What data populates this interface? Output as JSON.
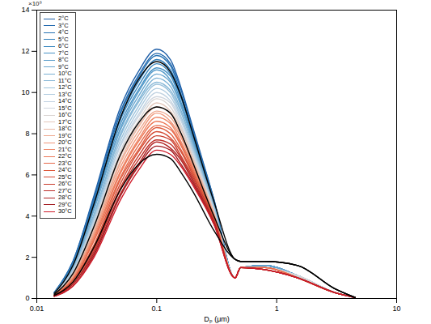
{
  "chart_data": {
    "type": "line",
    "x_label": "Dₚ (μm)",
    "annotations": [
      "×10⁹"
    ],
    "log": "x",
    "legend": "top-left",
    "x": [
      0.014,
      0.02,
      0.03,
      0.05,
      0.07,
      0.1,
      0.13,
      0.16,
      0.2,
      0.3,
      0.45,
      0.5,
      0.8,
      1.5,
      3,
      4.5
    ],
    "xlim": [
      0.01,
      10
    ],
    "xticks": [
      0.01,
      0.1,
      1,
      10
    ],
    "ylim": [
      0,
      14
    ],
    "yticks": [
      0,
      2,
      4,
      6,
      8,
      10,
      12,
      14
    ],
    "series": [
      {
        "name": "2°C",
        "color": "#1f5fa8",
        "values": [
          0.3,
          1.8,
          5.0,
          9.3,
          11.0,
          12.1,
          11.6,
          10.2,
          8.3,
          4.8,
          1.0,
          1.5,
          1.6,
          1.1,
          0.3,
          0.05
        ]
      },
      {
        "name": "3°C",
        "color": "#2369ae",
        "values": [
          0.29,
          1.8,
          4.9,
          9.1,
          10.8,
          11.9,
          11.4,
          10.1,
          8.2,
          4.8,
          1.0,
          1.5,
          1.6,
          1.1,
          0.3,
          0.05
        ]
      },
      {
        "name": "4°C",
        "color": "#2873b4",
        "values": [
          0.29,
          1.7,
          4.8,
          9.0,
          10.7,
          11.8,
          11.3,
          9.9,
          8.1,
          4.7,
          1.0,
          1.5,
          1.6,
          1.1,
          0.3,
          0.05
        ]
      },
      {
        "name": "5°C",
        "color": "#2f7dba",
        "values": [
          0.28,
          1.7,
          4.7,
          8.8,
          10.5,
          11.6,
          11.1,
          9.8,
          8.0,
          4.7,
          1.0,
          1.5,
          1.6,
          1.1,
          0.3,
          0.05
        ]
      },
      {
        "name": "6°C",
        "color": "#3a88c0",
        "values": [
          0.27,
          1.6,
          4.6,
          8.7,
          10.3,
          11.4,
          10.9,
          9.7,
          7.9,
          4.6,
          1.0,
          1.5,
          1.6,
          1.1,
          0.3,
          0.05
        ]
      },
      {
        "name": "7°C",
        "color": "#4892c5",
        "values": [
          0.26,
          1.6,
          4.5,
          8.5,
          10.1,
          11.2,
          10.8,
          9.5,
          7.8,
          4.6,
          1.0,
          1.5,
          1.6,
          1.1,
          0.3,
          0.05
        ]
      },
      {
        "name": "8°C",
        "color": "#589cca",
        "values": [
          0.26,
          1.5,
          4.4,
          8.3,
          10.0,
          11.1,
          10.6,
          9.4,
          7.7,
          4.5,
          1.0,
          1.5,
          1.6,
          1.1,
          0.3,
          0.05
        ]
      },
      {
        "name": "9°C",
        "color": "#68a6cf",
        "values": [
          0.25,
          1.5,
          4.3,
          8.2,
          9.8,
          10.9,
          10.5,
          9.3,
          7.6,
          4.5,
          1.0,
          1.5,
          1.6,
          1.1,
          0.3,
          0.05
        ]
      },
      {
        "name": "10°C",
        "color": "#79b0d4",
        "values": [
          0.24,
          1.5,
          4.1,
          8.0,
          9.6,
          10.7,
          10.3,
          9.1,
          7.5,
          4.5,
          1.0,
          1.5,
          1.5,
          1.1,
          0.3,
          0.05
        ]
      },
      {
        "name": "11°C",
        "color": "#8bbad8",
        "values": [
          0.24,
          1.4,
          4.0,
          7.9,
          9.5,
          10.5,
          10.1,
          9.0,
          7.4,
          4.4,
          1.0,
          1.5,
          1.5,
          1.1,
          0.3,
          0.05
        ]
      },
      {
        "name": "12°C",
        "color": "#9dc3dc",
        "values": [
          0.23,
          1.4,
          3.9,
          7.7,
          9.3,
          10.4,
          10.0,
          8.8,
          7.3,
          4.4,
          1.0,
          1.5,
          1.5,
          1.1,
          0.3,
          0.05
        ]
      },
      {
        "name": "13°C",
        "color": "#b0cce0",
        "values": [
          0.22,
          1.3,
          3.8,
          7.5,
          9.1,
          10.2,
          9.8,
          8.7,
          7.2,
          4.3,
          1.0,
          1.5,
          1.5,
          1.1,
          0.3,
          0.05
        ]
      },
      {
        "name": "14°C",
        "color": "#c2d3e2",
        "values": [
          0.21,
          1.3,
          3.7,
          7.4,
          8.9,
          10.0,
          9.6,
          8.6,
          7.1,
          4.3,
          1.0,
          1.5,
          1.5,
          1.1,
          0.3,
          0.05
        ]
      },
      {
        "name": "15°C",
        "color": "#d0d6de",
        "values": [
          0.21,
          1.2,
          3.6,
          7.2,
          8.8,
          9.8,
          9.5,
          8.4,
          7.0,
          4.2,
          1.0,
          1.5,
          1.5,
          1.1,
          0.3,
          0.05
        ]
      },
      {
        "name": "16°C",
        "color": "#d9d4d2",
        "values": [
          0.2,
          1.2,
          3.5,
          7.1,
          8.6,
          9.7,
          9.3,
          8.3,
          6.9,
          4.2,
          1.0,
          1.5,
          1.5,
          1.1,
          0.3,
          0.05
        ]
      },
      {
        "name": "17°C",
        "color": "#e4c8bc",
        "values": [
          0.19,
          1.2,
          3.4,
          6.9,
          8.4,
          9.5,
          9.1,
          8.2,
          6.8,
          4.2,
          1.0,
          1.5,
          1.5,
          1.0,
          0.3,
          0.05
        ]
      },
      {
        "name": "18°C",
        "color": "#eab8a5",
        "values": [
          0.19,
          1.1,
          3.3,
          6.7,
          8.3,
          9.3,
          9.0,
          8.0,
          6.7,
          4.1,
          1.0,
          1.5,
          1.5,
          1.0,
          0.3,
          0.05
        ]
      },
      {
        "name": "19°C",
        "color": "#eea88f",
        "values": [
          0.18,
          1.1,
          3.2,
          6.6,
          8.1,
          9.1,
          8.8,
          7.9,
          6.6,
          4.1,
          1.0,
          1.5,
          1.5,
          1.0,
          0.3,
          0.05
        ]
      },
      {
        "name": "20°C",
        "color": "#f0987b",
        "values": [
          0.17,
          1.0,
          3.1,
          6.4,
          7.9,
          9.0,
          8.6,
          7.8,
          6.5,
          4.0,
          1.0,
          1.5,
          1.5,
          1.0,
          0.3,
          0.05
        ]
      },
      {
        "name": "21°C",
        "color": "#ef8869",
        "values": [
          0.16,
          1.0,
          3.0,
          6.2,
          7.7,
          8.8,
          8.5,
          7.6,
          6.4,
          4.0,
          1.0,
          1.5,
          1.5,
          1.0,
          0.3,
          0.05
        ]
      },
      {
        "name": "22°C",
        "color": "#ec7858",
        "values": [
          0.16,
          0.9,
          2.9,
          6.1,
          7.6,
          8.6,
          8.3,
          7.5,
          6.3,
          3.9,
          1.0,
          1.5,
          1.5,
          1.0,
          0.3,
          0.05
        ]
      },
      {
        "name": "23°C",
        "color": "#e66849",
        "values": [
          0.15,
          0.9,
          2.8,
          5.9,
          7.4,
          8.4,
          8.2,
          7.4,
          6.2,
          3.9,
          1.0,
          1.5,
          1.5,
          1.0,
          0.3,
          0.05
        ]
      },
      {
        "name": "24°C",
        "color": "#de593c",
        "values": [
          0.14,
          0.9,
          2.6,
          5.8,
          7.2,
          8.3,
          8.0,
          7.2,
          6.1,
          3.9,
          1.0,
          1.5,
          1.4,
          1.0,
          0.3,
          0.05
        ]
      },
      {
        "name": "25°C",
        "color": "#d44a33",
        "values": [
          0.14,
          0.8,
          2.5,
          5.6,
          7.1,
          8.1,
          7.8,
          7.1,
          6.0,
          3.8,
          1.0,
          1.5,
          1.4,
          1.0,
          0.3,
          0.05
        ]
      },
      {
        "name": "26°C",
        "color": "#c93c2d",
        "values": [
          0.13,
          0.8,
          2.4,
          5.4,
          6.9,
          7.9,
          7.7,
          6.9,
          5.9,
          3.8,
          1.0,
          1.5,
          1.4,
          1.0,
          0.3,
          0.05
        ]
      },
      {
        "name": "27°C",
        "color": "#bd2f28",
        "values": [
          0.12,
          0.7,
          2.3,
          5.3,
          6.7,
          7.7,
          7.5,
          6.8,
          5.8,
          3.7,
          1.0,
          1.5,
          1.4,
          1.0,
          0.3,
          0.05
        ]
      },
      {
        "name": "28°C",
        "color": "#b02424",
        "values": [
          0.11,
          0.7,
          2.2,
          5.1,
          6.5,
          7.6,
          7.3,
          6.7,
          5.7,
          3.7,
          1.0,
          1.5,
          1.4,
          1.0,
          0.3,
          0.05
        ]
      },
      {
        "name": "29°C",
        "color": "#a31b21",
        "values": [
          0.11,
          0.6,
          2.1,
          5.0,
          6.4,
          7.4,
          7.2,
          6.5,
          5.6,
          3.6,
          1.0,
          1.5,
          1.4,
          1.0,
          0.3,
          0.05
        ]
      },
      {
        "name": "30°C",
        "color": "#d01c2a",
        "values": [
          0.1,
          0.6,
          2.0,
          4.8,
          6.2,
          7.2,
          7.0,
          6.4,
          5.5,
          3.6,
          1.0,
          1.5,
          1.4,
          1.0,
          0.3,
          0.05
        ]
      },
      {
        "name": null,
        "color": "#000000",
        "values": [
          0.25,
          1.6,
          4.6,
          8.8,
          10.6,
          11.5,
          11.0,
          9.8,
          8.0,
          4.7,
          1.9,
          1.8,
          1.8,
          1.6,
          0.5,
          0.05
        ]
      },
      {
        "name": null,
        "color": "#000000",
        "values": [
          0.2,
          1.2,
          3.5,
          7.0,
          8.5,
          9.3,
          9.0,
          8.0,
          6.6,
          4.0,
          1.9,
          1.8,
          1.8,
          1.6,
          0.5,
          0.05
        ]
      },
      {
        "name": null,
        "color": "#000000",
        "values": [
          0.15,
          0.8,
          2.5,
          5.3,
          6.5,
          7.0,
          6.8,
          6.1,
          5.2,
          3.3,
          1.9,
          1.8,
          1.8,
          1.6,
          0.5,
          0.05
        ]
      }
    ]
  }
}
